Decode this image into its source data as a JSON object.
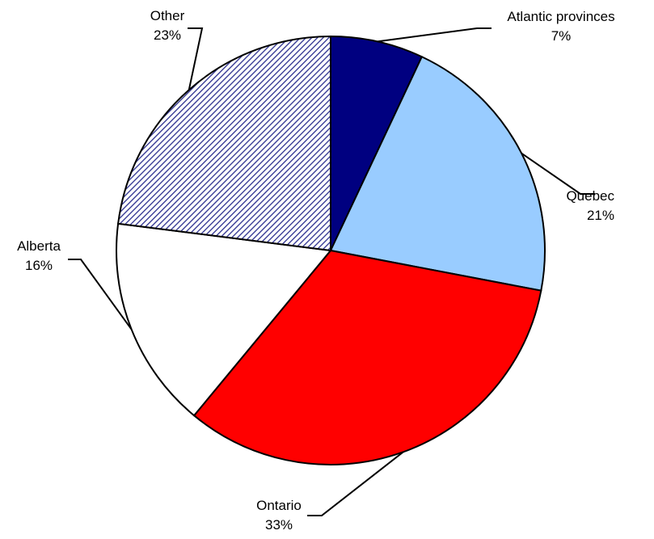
{
  "chart_data": {
    "type": "pie",
    "title": "",
    "slices": [
      {
        "label": "Atlantic provinces",
        "percent_label": "7%",
        "value": 7,
        "color": "#000080",
        "pattern": "solid"
      },
      {
        "label": "Quebec",
        "percent_label": "21%",
        "value": 21,
        "color": "#99ccff",
        "pattern": "solid"
      },
      {
        "label": "Ontario",
        "percent_label": "33%",
        "value": 33,
        "color": "#ff0000",
        "pattern": "solid"
      },
      {
        "label": "Alberta",
        "percent_label": "16%",
        "value": 16,
        "color": "#ffffff",
        "pattern": "solid"
      },
      {
        "label": "Other",
        "percent_label": "23%",
        "value": 23,
        "color": "#2b2f8f",
        "pattern": "diagonal-hatch"
      }
    ],
    "start_direction": "top, clockwise",
    "legend": "none, labels outside slices with leader lines"
  }
}
